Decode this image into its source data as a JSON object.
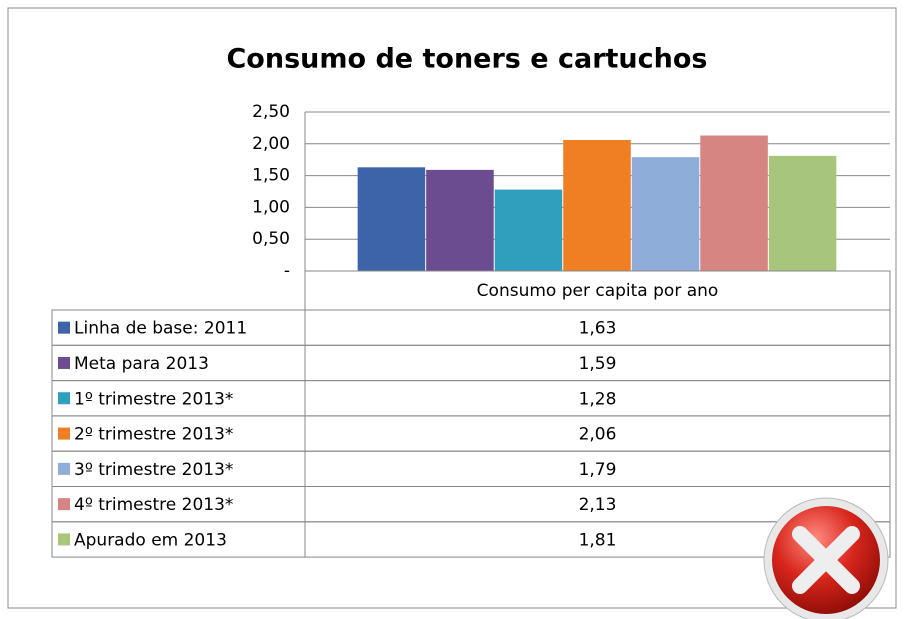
{
  "chart_data": {
    "type": "bar",
    "title": "Consumo de toners e cartuchos",
    "categories": [
      "Consumo per capita por ano"
    ],
    "series": [
      {
        "name": "Linha de base: 2011",
        "color": "#3d64a8",
        "values": [
          1.63
        ],
        "value_labels": [
          "1,63"
        ]
      },
      {
        "name": "Meta para 2013",
        "color": "#6b4c90",
        "values": [
          1.59
        ],
        "value_labels": [
          "1,59"
        ]
      },
      {
        "name": "1º trimestre 2013*",
        "color": "#2f9fbd",
        "values": [
          1.28
        ],
        "value_labels": [
          "1,28"
        ]
      },
      {
        "name": "2º trimestre 2013*",
        "color": "#f07e23",
        "values": [
          2.06
        ],
        "value_labels": [
          "2,06"
        ]
      },
      {
        "name": "3º trimestre 2013*",
        "color": "#8eadd9",
        "values": [
          1.79
        ],
        "value_labels": [
          "1,79"
        ]
      },
      {
        "name": "4º trimestre 2013*",
        "color": "#d78583",
        "values": [
          2.13
        ],
        "value_labels": [
          "2,13"
        ]
      },
      {
        "name": "Apurado em 2013",
        "color": "#a8c67b",
        "values": [
          1.81
        ],
        "value_labels": [
          "1,81"
        ]
      }
    ],
    "ylim": [
      0,
      2.5
    ],
    "yticks": [
      {
        "value": 0,
        "label": "-"
      },
      {
        "value": 0.5,
        "label": "0,50"
      },
      {
        "value": 1,
        "label": "1,00"
      },
      {
        "value": 1.5,
        "label": "1,50"
      },
      {
        "value": 2,
        "label": "2,00"
      },
      {
        "value": 2.5,
        "label": "2,50"
      }
    ],
    "grid": true,
    "data_table": true
  }
}
